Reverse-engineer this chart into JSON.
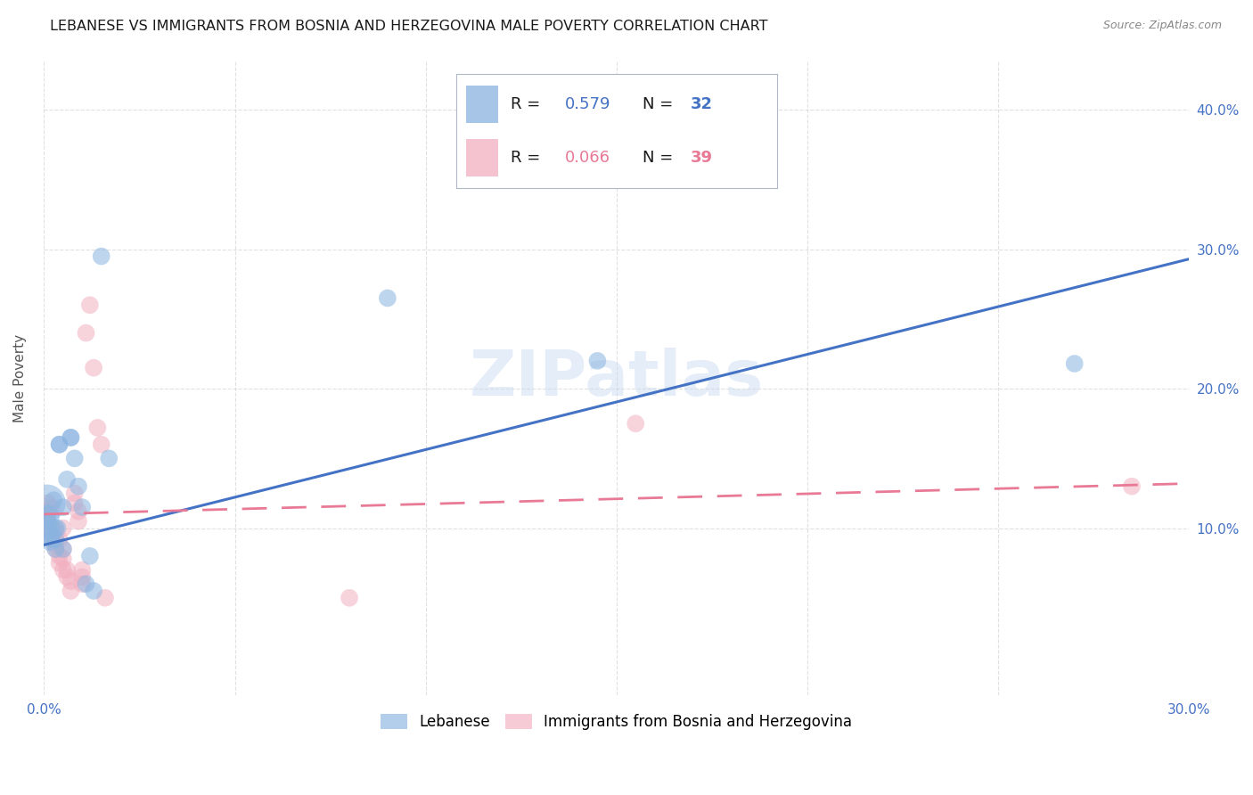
{
  "title": "LEBANESE VS IMMIGRANTS FROM BOSNIA AND HERZEGOVINA MALE POVERTY CORRELATION CHART",
  "source": "Source: ZipAtlas.com",
  "ylabel": "Male Poverty",
  "xlim": [
    0.0,
    0.3
  ],
  "ylim": [
    -0.02,
    0.435
  ],
  "yticks": [
    0.1,
    0.2,
    0.3,
    0.4
  ],
  "xticks": [
    0.0,
    0.05,
    0.1,
    0.15,
    0.2,
    0.25,
    0.3
  ],
  "ytick_labels": [
    "10.0%",
    "20.0%",
    "30.0%",
    "40.0%"
  ],
  "watermark": "ZIPatlas",
  "legend_r1": "R = 0.579",
  "legend_n1": "N = 32",
  "legend_r2": "R = 0.066",
  "legend_n2": "N = 39",
  "series1_label": "Lebanese",
  "series2_label": "Immigrants from Bosnia and Herzegovina",
  "blue_color": "#8ab4e0",
  "pink_color": "#f2afc0",
  "blue_line_color": "#4472c4",
  "pink_line_color": "#e87a96",
  "series1_x": [
    0.0008,
    0.0008,
    0.001,
    0.001,
    0.0015,
    0.0015,
    0.002,
    0.002,
    0.002,
    0.0025,
    0.003,
    0.003,
    0.003,
    0.0035,
    0.004,
    0.004,
    0.005,
    0.005,
    0.006,
    0.007,
    0.007,
    0.008,
    0.009,
    0.01,
    0.011,
    0.012,
    0.013,
    0.015,
    0.017,
    0.09,
    0.145,
    0.27
  ],
  "series1_y": [
    0.118,
    0.108,
    0.105,
    0.11,
    0.098,
    0.09,
    0.095,
    0.092,
    0.1,
    0.12,
    0.092,
    0.1,
    0.085,
    0.1,
    0.16,
    0.16,
    0.085,
    0.115,
    0.135,
    0.165,
    0.165,
    0.15,
    0.13,
    0.115,
    0.06,
    0.08,
    0.055,
    0.295,
    0.15,
    0.265,
    0.22,
    0.218
  ],
  "series1_sizes": [
    900,
    400,
    200,
    200,
    200,
    200,
    200,
    200,
    200,
    200,
    200,
    200,
    200,
    200,
    200,
    200,
    200,
    200,
    200,
    200,
    200,
    200,
    200,
    200,
    200,
    200,
    200,
    200,
    200,
    200,
    200,
    200
  ],
  "series2_x": [
    0.0005,
    0.0008,
    0.001,
    0.001,
    0.0015,
    0.002,
    0.002,
    0.002,
    0.003,
    0.003,
    0.003,
    0.003,
    0.004,
    0.004,
    0.004,
    0.005,
    0.005,
    0.005,
    0.005,
    0.006,
    0.006,
    0.007,
    0.007,
    0.008,
    0.008,
    0.009,
    0.009,
    0.01,
    0.01,
    0.01,
    0.011,
    0.012,
    0.013,
    0.014,
    0.015,
    0.016,
    0.08,
    0.155,
    0.285
  ],
  "series2_y": [
    0.108,
    0.105,
    0.118,
    0.112,
    0.1,
    0.095,
    0.092,
    0.115,
    0.085,
    0.088,
    0.092,
    0.098,
    0.075,
    0.08,
    0.092,
    0.07,
    0.078,
    0.085,
    0.1,
    0.065,
    0.07,
    0.055,
    0.062,
    0.118,
    0.125,
    0.105,
    0.112,
    0.06,
    0.065,
    0.07,
    0.24,
    0.26,
    0.215,
    0.172,
    0.16,
    0.05,
    0.05,
    0.175,
    0.13
  ],
  "series2_sizes": [
    200,
    200,
    200,
    200,
    200,
    200,
    200,
    200,
    200,
    200,
    200,
    200,
    200,
    200,
    200,
    200,
    200,
    200,
    200,
    200,
    200,
    200,
    200,
    200,
    200,
    200,
    200,
    200,
    200,
    200,
    200,
    200,
    200,
    200,
    200,
    200,
    200,
    200,
    200
  ],
  "trend1_x": [
    0.0,
    0.3
  ],
  "trend1_y": [
    0.088,
    0.293
  ],
  "trend2_x": [
    0.0,
    0.3
  ],
  "trend2_y": [
    0.11,
    0.132
  ],
  "background_color": "#ffffff",
  "grid_color": "#cccccc",
  "title_fontsize": 11.5,
  "axis_label_fontsize": 11,
  "tick_fontsize": 11,
  "legend_fontsize": 13
}
